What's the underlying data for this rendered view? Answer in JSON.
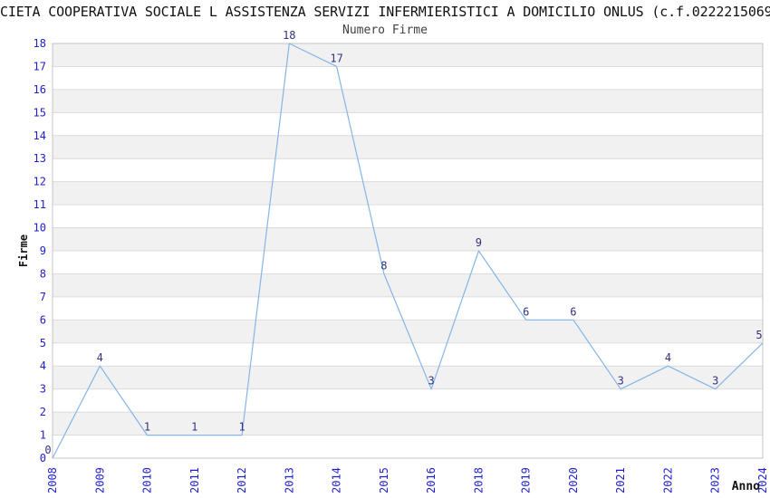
{
  "chart_data": {
    "type": "line",
    "title": "CIETA COOPERATIVA SOCIALE L ASSISTENZA SERVIZI INFERMIERISTICI A DOMICILIO ONLUS (c.f.0222215069",
    "subtitle": "Numero Firme",
    "xlabel": "Anno",
    "ylabel": "Firme",
    "categories": [
      "2008",
      "2009",
      "2010",
      "2011",
      "2012",
      "2013",
      "2014",
      "2015",
      "2016",
      "2018",
      "2019",
      "2020",
      "2021",
      "2022",
      "2023",
      "2024"
    ],
    "values": [
      0,
      4,
      1,
      1,
      1,
      18,
      17,
      8,
      3,
      9,
      6,
      6,
      3,
      4,
      3,
      5
    ],
    "ylim": [
      0,
      18
    ],
    "y_tick_step": 1,
    "grid": "horizontal-bands",
    "legend": "none",
    "colors": {
      "line": "#85b5e8",
      "tick_label": "#2020d0",
      "data_label": "#32327f",
      "band": "#f1f1f1",
      "gridline": "#dcdcdc",
      "plot_border": "#c4c4c4",
      "title": "#111111",
      "subtitle": "#404040",
      "axis_title": "#111111"
    }
  }
}
